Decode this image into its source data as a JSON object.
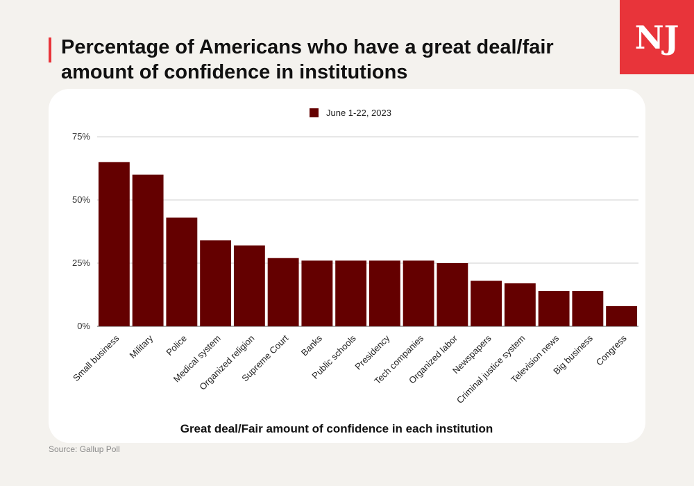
{
  "page": {
    "title": "Percentage of Americans who have a great deal/fair amount of confidence in institutions",
    "logo_text": "NJ",
    "source": "Source: Gallup Poll",
    "colors": {
      "accent": "#e8343a",
      "bar": "#640000",
      "background": "#f4f2ee"
    }
  },
  "chart_data": {
    "type": "bar",
    "title": "",
    "xlabel": "Great deal/Fair amount of confidence in each institution",
    "ylabel": "",
    "ylim": [
      0,
      75
    ],
    "yticks": [
      0,
      25,
      50,
      75
    ],
    "ytick_labels": [
      "0%",
      "25%",
      "50%",
      "75%"
    ],
    "grid": true,
    "legend": "top-center",
    "categories": [
      "Small business",
      "Military",
      "Police",
      "Medical system",
      "Organized religion",
      "Supreme Court",
      "Banks",
      "Public schools",
      "Presidency",
      "Tech companies",
      "Organized labor",
      "Newspapers",
      "Criminal justice system",
      "Television news",
      "Big business",
      "Congress"
    ],
    "series": [
      {
        "name": "June 1-22, 2023",
        "color": "#640000",
        "values": [
          65,
          60,
          43,
          34,
          32,
          27,
          26,
          26,
          26,
          26,
          25,
          18,
          17,
          14,
          14,
          8
        ]
      }
    ]
  }
}
